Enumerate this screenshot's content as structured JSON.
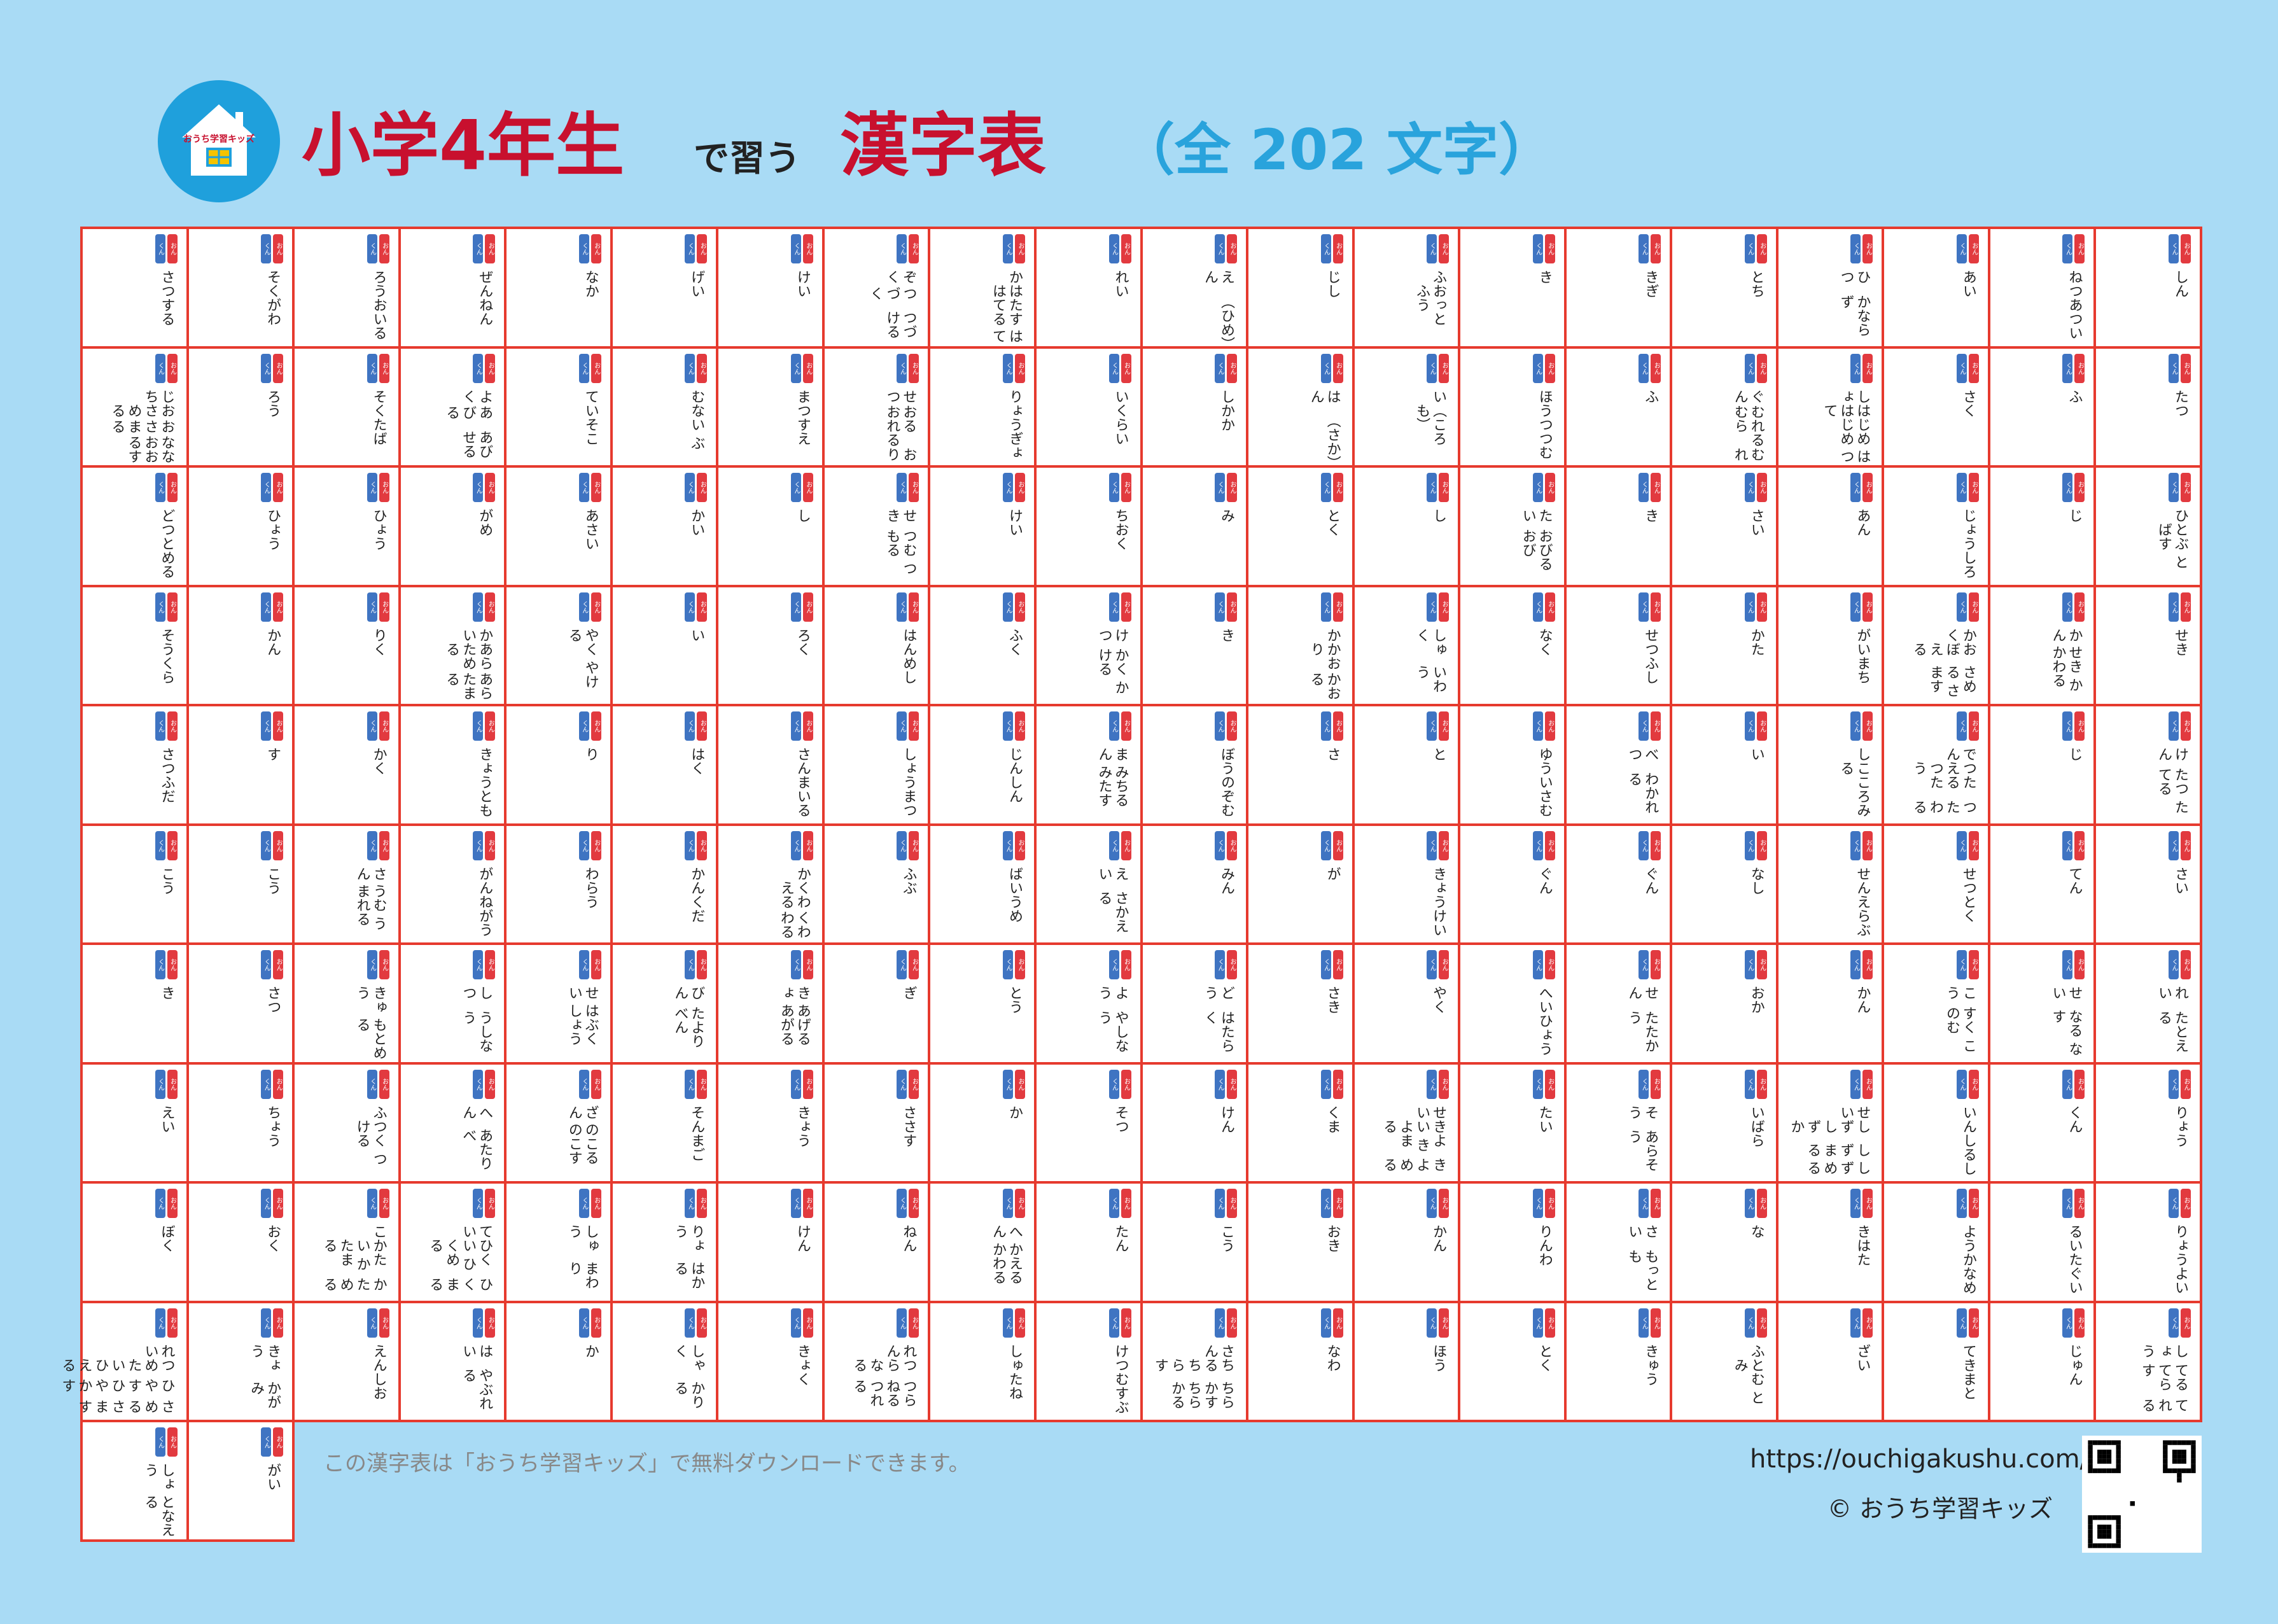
{
  "header": {
    "logo_text": "おうち学習キッズ",
    "title_grade": "小学4年生",
    "title_mid": "で習う",
    "title_main": "漢字表",
    "title_count": "（全 202 文字）"
  },
  "badges": {
    "kun": "くん",
    "on": "おん"
  },
  "colors": {
    "background": "#a9dbf5",
    "grid": "#e63a2e",
    "title": "#c8102e",
    "count": "#29a3dc",
    "kun": "#3f74c2",
    "on": "#e23a3f"
  },
  "cells": [
    [
      "さつ",
      "する"
    ],
    [
      "そく",
      "がわ"
    ],
    [
      "ろう",
      "おいる"
    ],
    [
      "ぜん",
      "ねん"
    ],
    [
      "なか"
    ],
    [
      "げい"
    ],
    [
      "けい"
    ],
    [
      "ぞく",
      "つづく",
      "つづける"
    ],
    [
      "か",
      "はたす はてる",
      "はて"
    ],
    [
      "れい"
    ],
    [
      "えん",
      "（ひめ）"
    ],
    [
      "じ",
      "し"
    ],
    [
      "ふ",
      "おっと ふう"
    ],
    [
      "き"
    ],
    [
      "き",
      "ぎ"
    ],
    [
      "とち"
    ],
    [
      "ひつ",
      "かならず"
    ],
    [
      "あい"
    ],
    [
      "ねつ",
      "あつい"
    ],
    [
      "しん"
    ],
    [
      "じ ち",
      "おさめる",
      "おさまる",
      "なおる",
      "なおす"
    ],
    [
      "ろう"
    ],
    [
      "そく",
      "たば"
    ],
    [
      "よく",
      "あびる",
      "あびせる"
    ],
    [
      "てい",
      "そこ"
    ],
    [
      "む",
      "ない ぶ"
    ],
    [
      "まつ",
      "すえ"
    ],
    [
      "せつ",
      "おる おれる",
      "おり"
    ],
    [
      "りょう",
      "ぎょ"
    ],
    [
      "い",
      "くらい"
    ],
    [
      "しか",
      "か"
    ],
    [
      "はん",
      "（さか）"
    ],
    [
      "い",
      "（ころも）"
    ],
    [
      "ほう",
      "つつむ"
    ],
    [
      "ふ"
    ],
    [
      "ぐん",
      "むれる むら",
      "むれ"
    ],
    [
      "しょ",
      "はじめ はじめて",
      "はつ"
    ],
    [
      "さく"
    ],
    [
      "ふ"
    ],
    [
      "たつ"
    ],
    [
      "ど",
      "つとめる"
    ],
    [
      "ひょう"
    ],
    [
      "ひょう"
    ],
    [
      "が",
      "め"
    ],
    [
      "あさい"
    ],
    [
      "かい"
    ],
    [
      "し"
    ],
    [
      "せき",
      "つむ つもる"
    ],
    [
      "けい"
    ],
    [
      "ち",
      "おく"
    ],
    [
      "み"
    ],
    [
      "とく"
    ],
    [
      "し"
    ],
    [
      "たい",
      "おびる おび"
    ],
    [
      "き"
    ],
    [
      "さい"
    ],
    [
      "あん"
    ],
    [
      "じょう",
      "しろ"
    ],
    [
      "じ"
    ],
    [
      "ひ",
      "とぶ とばす"
    ],
    [
      "そう",
      "くら"
    ],
    [
      "かん"
    ],
    [
      "りく"
    ],
    [
      "かい",
      "あらためる",
      "あらたまる"
    ],
    [
      "やく やける"
    ],
    [
      "い"
    ],
    [
      "ろく"
    ],
    [
      "はん",
      "めし"
    ],
    [
      "ふく"
    ],
    [
      "けつ",
      "かく かける"
    ],
    [
      "き"
    ],
    [
      "か",
      "かおり",
      "かおる"
    ],
    [
      "しゅく",
      "いわう"
    ],
    [
      "なく"
    ],
    [
      "せつ",
      "ふし"
    ],
    [
      "かた"
    ],
    [
      "がい",
      "まち"
    ],
    [
      "かく",
      "おぼえる",
      "さめる さます"
    ],
    [
      "かん",
      "せき かかわる"
    ],
    [
      "せき"
    ],
    [
      "さつ",
      "ふだ"
    ],
    [
      "す"
    ],
    [
      "かく"
    ],
    [
      "きょう",
      "とも"
    ],
    [
      "り"
    ],
    [
      "はく"
    ],
    [
      "さん",
      "まいる"
    ],
    [
      "しょう",
      "まつ"
    ],
    [
      "じん",
      "しん"
    ],
    [
      "まん",
      "みちる みたす"
    ],
    [
      "ぼう",
      "のぞむ"
    ],
    [
      "さ"
    ],
    [
      "と"
    ],
    [
      "ゆう",
      "いさむ"
    ],
    [
      "べつ",
      "わかれる"
    ],
    [
      "い"
    ],
    [
      "し",
      "こころみる"
    ],
    [
      "でん",
      "つたえる つたう",
      "つたわる"
    ],
    [
      "じ"
    ],
    [
      "けん",
      "たつ たてる"
    ],
    [
      "こう"
    ],
    [
      "こう"
    ],
    [
      "さん",
      "うむ うまれる"
    ],
    [
      "がん",
      "ねがう"
    ],
    [
      "わらう"
    ],
    [
      "かん",
      "くだ"
    ],
    [
      "か",
      "くわえる",
      "くわわる"
    ],
    [
      "ふ",
      "ぶ"
    ],
    [
      "ばい",
      "うめ"
    ],
    [
      "えい",
      "さかえる"
    ],
    [
      "みん"
    ],
    [
      "が"
    ],
    [
      "きょう",
      "けい"
    ],
    [
      "ぐん"
    ],
    [
      "ぐん"
    ],
    [
      "なし"
    ],
    [
      "せん",
      "えらぶ"
    ],
    [
      "せつ",
      "とく"
    ],
    [
      "てん"
    ],
    [
      "さい"
    ],
    [
      "き"
    ],
    [
      "さつ"
    ],
    [
      "きゅう",
      "もとめる"
    ],
    [
      "しつ",
      "うしなう"
    ],
    [
      "せい",
      "はぶく しょう"
    ],
    [
      "びん",
      "たより べん"
    ],
    [
      "きょ",
      "あげる あがる"
    ],
    [
      "ぎ"
    ],
    [
      "とう"
    ],
    [
      "よう",
      "やしなう"
    ],
    [
      "どう",
      "はたらく"
    ],
    [
      "さき"
    ],
    [
      "やく"
    ],
    [
      "へい",
      "ひょう"
    ],
    [
      "せん",
      "たたかう"
    ],
    [
      "おか"
    ],
    [
      "かん"
    ],
    [
      "こう",
      "すく このむ"
    ],
    [
      "せい",
      "なる なす"
    ],
    [
      "れい",
      "たとえる"
    ],
    [
      "えい"
    ],
    [
      "ちょう"
    ],
    [
      "ふ",
      "つく つける"
    ],
    [
      "へん",
      "あたり べ"
    ],
    [
      "ざん",
      "のこる のこす"
    ],
    [
      "そん",
      "まご"
    ],
    [
      "きょう"
    ],
    [
      "さ",
      "さす"
    ],
    [
      "か"
    ],
    [
      "そつ"
    ],
    [
      "けん"
    ],
    [
      "くま"
    ],
    [
      "せい",
      "きよい きよまる",
      "きよめる"
    ],
    [
      "たい"
    ],
    [
      "そう",
      "あらそう"
    ],
    [
      "いばら"
    ],
    [
      "せい",
      "しず しずか",
      "しずまる",
      "しずめる"
    ],
    [
      "いん",
      "しるし"
    ],
    [
      "くん"
    ],
    [
      "りょう"
    ],
    [
      "ぼく"
    ],
    [
      "おく"
    ],
    [
      "こ",
      "かたい かたまる",
      "かためる"
    ],
    [
      "てい",
      "ひくい ひくめる",
      "ひくまる"
    ],
    [
      "しゅう",
      "まわり"
    ],
    [
      "りょう",
      "はかる"
    ],
    [
      "けん"
    ],
    [
      "ねん"
    ],
    [
      "へん",
      "かえる かわる"
    ],
    [
      "たん"
    ],
    [
      "こう"
    ],
    [
      "おき"
    ],
    [
      "かん"
    ],
    [
      "りん",
      "わ"
    ],
    [
      "さい",
      "もっとも"
    ],
    [
      "な"
    ],
    [
      "き",
      "はた"
    ],
    [
      "よう",
      "かなめ"
    ],
    [
      "るい",
      "たぐい"
    ],
    [
      "りょう",
      "よい"
    ],
    [
      "れい",
      "つめたい ひえる",
      "ひやす ひやかす",
      "さめる さます"
    ],
    [
      "きょう",
      "かがみ"
    ],
    [
      "えん",
      "しお"
    ],
    [
      "はい",
      "やぶれる"
    ],
    [
      "か"
    ],
    [
      "しゃく",
      "かりる"
    ],
    [
      "きょく"
    ],
    [
      "れん",
      "つらなる",
      "つらねる つれる"
    ],
    [
      "しゅ",
      "たね"
    ],
    [
      "けつ",
      "むすぶ"
    ],
    [
      "さん",
      "ちる ちらす",
      "ちらかす ちらかる"
    ],
    [
      "なわ"
    ],
    [
      "ほう"
    ],
    [
      "とく"
    ],
    [
      "きゅう"
    ],
    [
      "ふ",
      "とむ とみ"
    ],
    [
      "ざい"
    ],
    [
      "てき",
      "まと"
    ],
    [
      "じゅん"
    ],
    [
      "しょう",
      "てる てらす",
      "てれる"
    ],
    [
      "しょう",
      "となえる"
    ],
    [
      "がい"
    ]
  ],
  "footer": {
    "note": "この漢字表は「おうち学習キッズ」で無料ダウンロードできます。",
    "url": "https://ouchigakushu.com/",
    "copyright": "© おうち学習キッズ"
  }
}
